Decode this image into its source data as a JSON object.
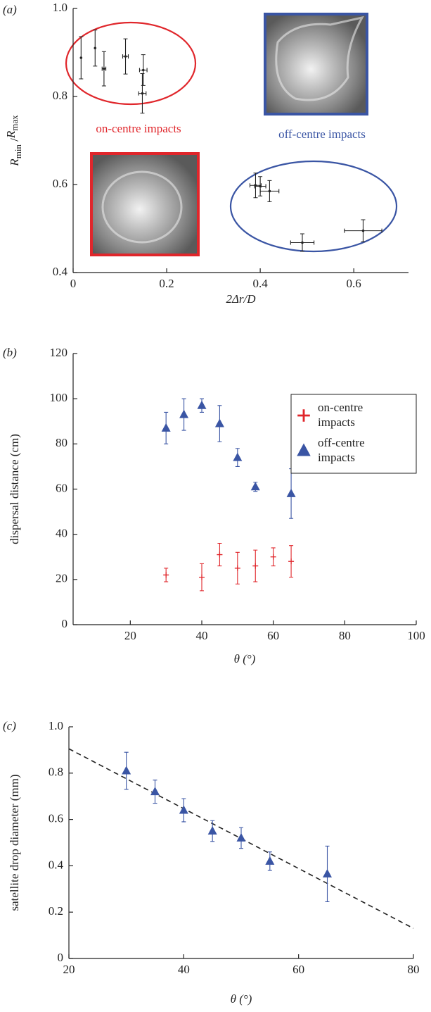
{
  "chart_data": [
    {
      "type": "scatter",
      "panel_label": "(a)",
      "xlabel": "2Δr/D",
      "ylabel_parts": [
        "R",
        "min",
        " /",
        "R",
        "max"
      ],
      "xlim": [
        0,
        0.717
      ],
      "ylim": [
        0.4,
        1.0
      ],
      "xticks": [
        0,
        0.2,
        0.4,
        0.6
      ],
      "yticks": [
        0.4,
        0.6,
        0.8,
        {
          "value": 1,
          "label": "1.0"
        }
      ],
      "annotations": [
        {
          "text": "on-centre impacts",
          "color": "#e0262b"
        },
        {
          "text": "off-centre impacts",
          "color": "#3a55a4"
        }
      ],
      "series": [
        {
          "color": "#222222",
          "marker": "dot",
          "x": [
            0.017,
            0.047,
            0.066,
            0.112,
            0.15,
            0.148,
            0.39,
            0.4,
            0.42,
            0.49,
            0.62
          ],
          "values": [
            0.888,
            0.91,
            0.863,
            0.891,
            0.86,
            0.807,
            0.598,
            0.596,
            0.585,
            0.468,
            0.495
          ],
          "errors": [
            0.048,
            0.041,
            0.039,
            0.04,
            0.035,
            0.045,
            0.028,
            0.022,
            0.024,
            0.02,
            0.025
          ],
          "xerrors": [
            0,
            0,
            0.004,
            0.006,
            0.008,
            0.008,
            0.012,
            0.012,
            0.02,
            0.025,
            0.04
          ]
        }
      ]
    },
    {
      "type": "scatter",
      "panel_label": "(b)",
      "xlabel": "θ (°)",
      "ylabel": "dispersal distance (cm)",
      "xlim": [
        4,
        100
      ],
      "ylim": [
        0,
        120
      ],
      "xticks": [
        20,
        40,
        60,
        80,
        100
      ],
      "yticks": [
        0,
        20,
        40,
        60,
        80,
        100,
        120
      ],
      "series": [
        {
          "name": "on-centre impacts",
          "color": "#e0262b",
          "marker": "plus",
          "x": [
            30,
            40,
            45,
            50,
            55,
            60,
            65
          ],
          "values": [
            22,
            21,
            31,
            25,
            26,
            30,
            28
          ],
          "errors": [
            3,
            6,
            5,
            7,
            7,
            4,
            7
          ]
        },
        {
          "name": "off-centre impacts",
          "color": "#3a55a4",
          "marker": "triangle",
          "x": [
            30,
            35,
            40,
            45,
            50,
            55,
            65
          ],
          "values": [
            87,
            93,
            97,
            89,
            74,
            61,
            58
          ],
          "errors": [
            7,
            7,
            3,
            8,
            4,
            2,
            11
          ]
        }
      ]
    },
    {
      "type": "scatter",
      "panel_label": "(c)",
      "xlabel": "θ (°)",
      "ylabel": "satellite drop diameter (mm)",
      "xlim": [
        20,
        80
      ],
      "ylim": [
        0,
        1.0
      ],
      "xticks": [
        20,
        40,
        60,
        80
      ],
      "yticks": [
        0,
        0.2,
        0.4,
        0.6,
        0.8,
        {
          "value": 1,
          "label": "1.0"
        }
      ],
      "series": [
        {
          "color": "#3a55a4",
          "marker": "triangle",
          "x": [
            30,
            35,
            40,
            45,
            50,
            55,
            65
          ],
          "values": [
            0.81,
            0.72,
            0.64,
            0.55,
            0.52,
            0.42,
            0.365
          ],
          "errors": [
            0.08,
            0.05,
            0.05,
            0.045,
            0.045,
            0.04,
            0.12
          ]
        }
      ],
      "fit": {
        "color": "#222222",
        "x": [
          20,
          80
        ],
        "values": [
          0.905,
          0.13
        ]
      }
    }
  ]
}
